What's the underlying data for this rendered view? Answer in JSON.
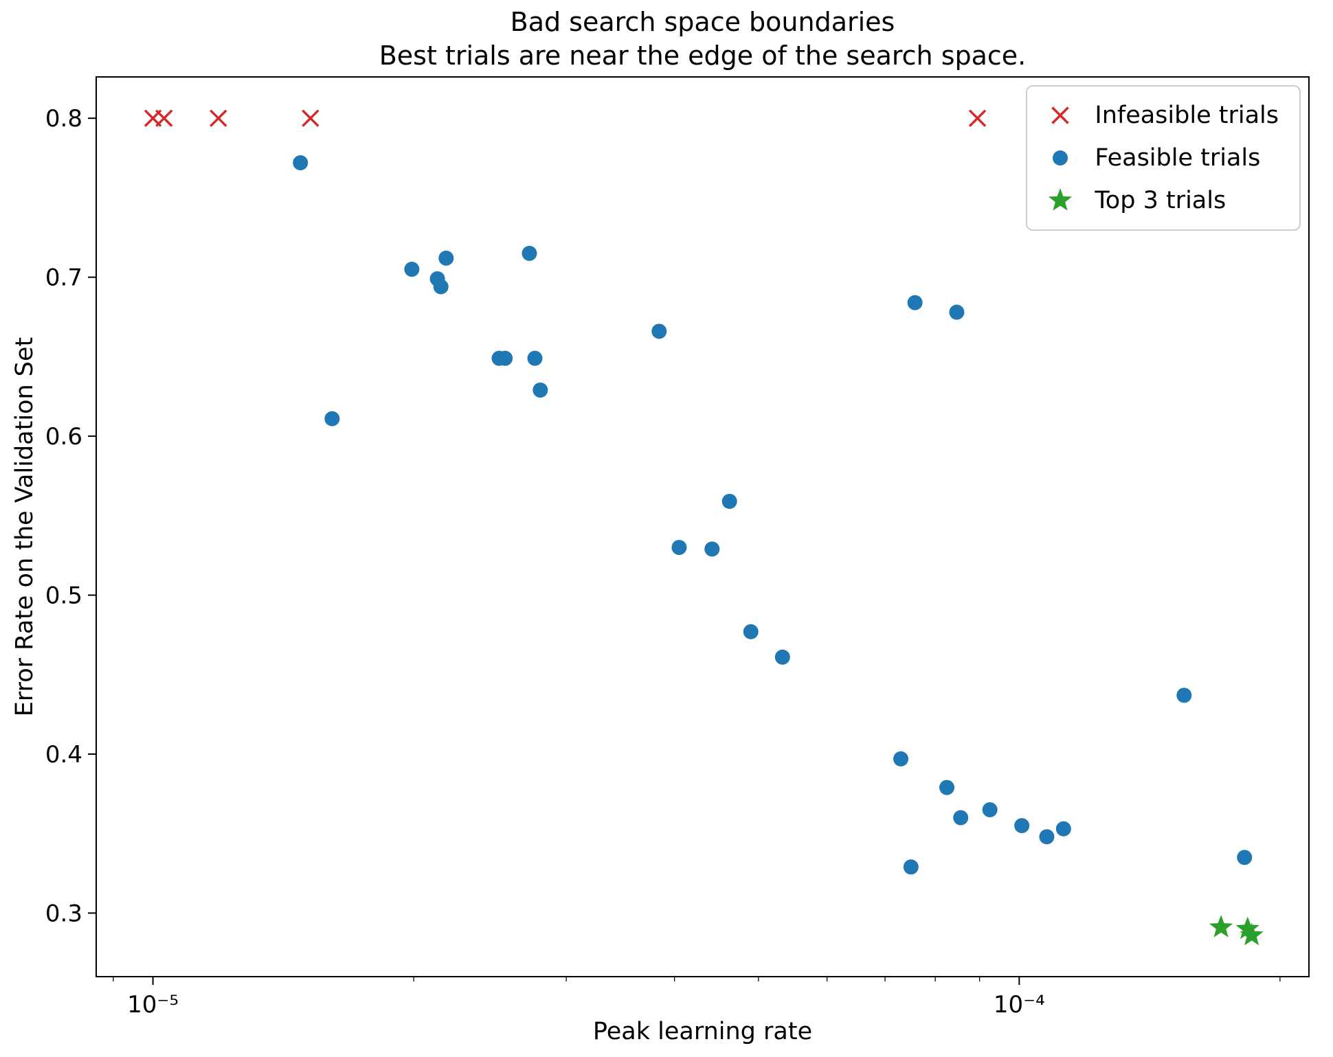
{
  "chart_data": {
    "type": "scatter",
    "title_line1": "Bad search space boundaries",
    "title_line2": "Best trials are near the edge of the search space.",
    "xlabel": "Peak learning rate",
    "ylabel": "Error Rate on the Validation Set",
    "xscale": "log",
    "yscale": "linear",
    "grid": false,
    "legend_position": "upper right",
    "xlim": [
      8.6e-06,
      0.000216
    ],
    "ylim": [
      0.26,
      0.826
    ],
    "x_ticks": [
      {
        "value": 1e-05,
        "label": "10⁻⁵"
      },
      {
        "value": 0.0001,
        "label": "10⁻⁴"
      }
    ],
    "x_minor_ticks": [
      9e-06,
      2e-05,
      3e-05,
      4e-05,
      5e-05,
      6e-05,
      7e-05,
      8e-05,
      9e-05,
      0.0002
    ],
    "y_ticks": [
      0.3,
      0.4,
      0.5,
      0.6,
      0.7,
      0.8
    ],
    "series": [
      {
        "name": "Infeasible trials",
        "marker": "x",
        "color": "#d62728",
        "points": [
          [
            1e-05,
            0.8
          ],
          [
            1.03e-05,
            0.8
          ],
          [
            1.19e-05,
            0.8
          ],
          [
            1.52e-05,
            0.8
          ],
          [
            8.95e-05,
            0.8
          ]
        ]
      },
      {
        "name": "Feasible trials",
        "marker": "circle",
        "color": "#1f77b4",
        "points": [
          [
            1.48e-05,
            0.772
          ],
          [
            1.61e-05,
            0.611
          ],
          [
            1.99e-05,
            0.705
          ],
          [
            2.13e-05,
            0.699
          ],
          [
            2.15e-05,
            0.694
          ],
          [
            2.18e-05,
            0.712
          ],
          [
            2.51e-05,
            0.649
          ],
          [
            2.55e-05,
            0.649
          ],
          [
            2.72e-05,
            0.715
          ],
          [
            2.76e-05,
            0.649
          ],
          [
            2.8e-05,
            0.629
          ],
          [
            3.84e-05,
            0.666
          ],
          [
            4.05e-05,
            0.53
          ],
          [
            4.42e-05,
            0.529
          ],
          [
            4.63e-05,
            0.559
          ],
          [
            4.9e-05,
            0.477
          ],
          [
            5.33e-05,
            0.461
          ],
          [
            7.3e-05,
            0.397
          ],
          [
            7.5e-05,
            0.329
          ],
          [
            7.58e-05,
            0.684
          ],
          [
            8.25e-05,
            0.379
          ],
          [
            8.47e-05,
            0.678
          ],
          [
            8.56e-05,
            0.36
          ],
          [
            9.25e-05,
            0.365
          ],
          [
            0.0001007,
            0.355
          ],
          [
            0.0001076,
            0.348
          ],
          [
            0.0001125,
            0.353
          ],
          [
            0.000155,
            0.437
          ],
          [
            0.000182,
            0.335
          ]
        ]
      },
      {
        "name": "Top 3 trials",
        "marker": "star",
        "color": "#2ca02c",
        "points": [
          [
            0.000171,
            0.291
          ],
          [
            0.0001835,
            0.29
          ],
          [
            0.0001855,
            0.286
          ]
        ]
      }
    ]
  }
}
